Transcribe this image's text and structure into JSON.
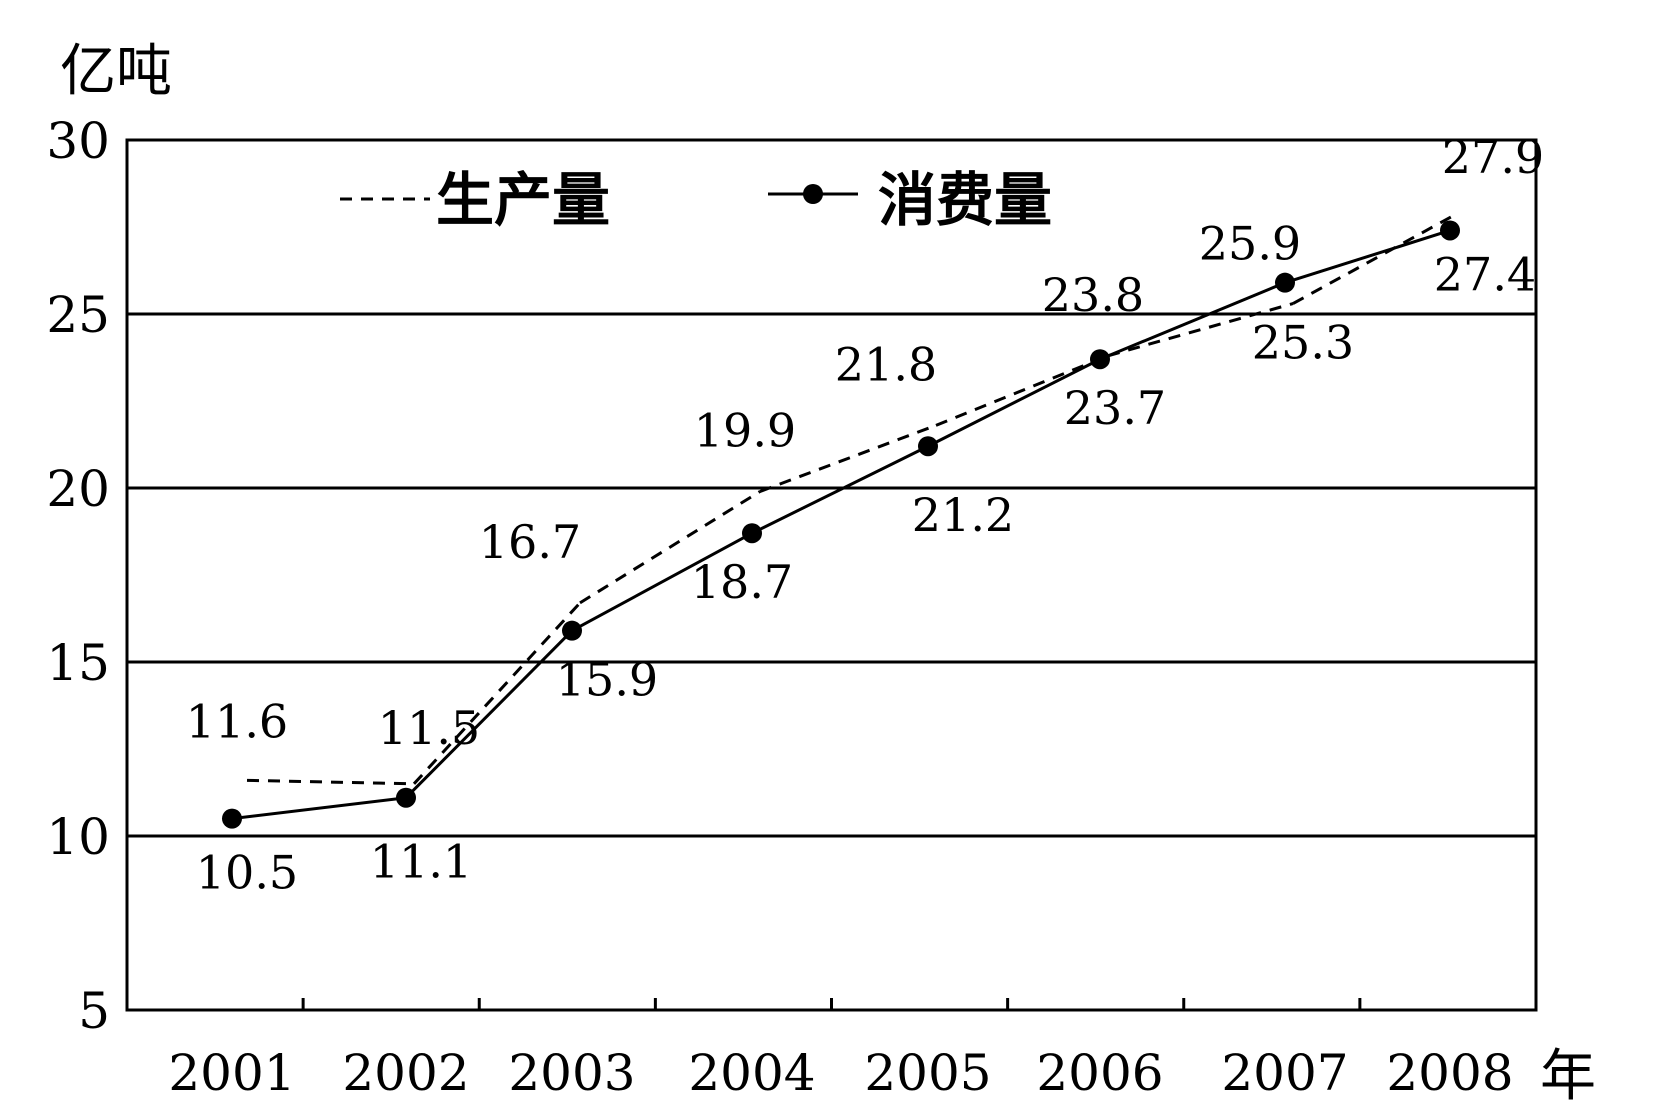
{
  "chart_data": {
    "type": "line",
    "ylabel": "亿吨",
    "xlabel": "年",
    "categories": [
      "2001",
      "2002",
      "2003",
      "2004",
      "2005",
      "2006",
      "2007",
      "2008"
    ],
    "yticks": [
      "30",
      "25",
      "20",
      "15",
      "10",
      "5"
    ],
    "ylim": [
      5,
      30
    ],
    "grid": "horizontal",
    "legend_position": "top-left",
    "series": [
      {
        "name": "生产量",
        "style": "dashed",
        "values": [
          11.6,
          11.5,
          16.7,
          19.9,
          21.8,
          23.8,
          25.3,
          27.9
        ],
        "labels": [
          "11.6",
          "11.5",
          "16.7",
          "19.9",
          "21.8",
          "23.8",
          "25.3",
          "27.9"
        ]
      },
      {
        "name": "消费量",
        "style": "solid-marker",
        "values": [
          10.5,
          11.1,
          15.9,
          18.7,
          21.2,
          23.7,
          25.9,
          27.4
        ],
        "labels": [
          "10.5",
          "11.1",
          "15.9",
          "18.7",
          "21.2",
          "23.7",
          "25.9",
          "27.4"
        ]
      }
    ]
  }
}
